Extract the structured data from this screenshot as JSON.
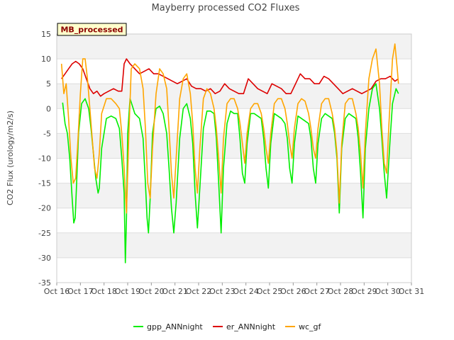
{
  "chart_data": {
    "type": "line",
    "title": "Mayberry processed CO2 Fluxes",
    "ylabel": "CO2 Flux (urology/m2/s)",
    "xlabel": "",
    "tag": "MB_processed",
    "ylim": [
      -35,
      15
    ],
    "yticks": [
      15,
      10,
      5,
      0,
      -5,
      -10,
      -15,
      -20,
      -25,
      -30,
      -35
    ],
    "xlim": [
      16,
      31
    ],
    "xticks": [
      16,
      17,
      18,
      19,
      20,
      21,
      22,
      23,
      24,
      25,
      26,
      27,
      28,
      29,
      30,
      31
    ],
    "xtick_labels": [
      "Oct 16",
      "Oct 17",
      "Oct 18",
      "Oct 19",
      "Oct 20",
      "Oct 21",
      "Oct 22",
      "Oct 23",
      "Oct 24",
      "Oct 25",
      "Oct 26",
      "Oct 27",
      "Oct 28",
      "Oct 29",
      "Oct 30",
      "Oct 31"
    ],
    "series": [
      {
        "name": "gpp_ANNnight",
        "color": "#00ee00",
        "x": [
          16.25,
          16.35,
          16.45,
          16.55,
          16.65,
          16.72,
          16.78,
          16.85,
          16.92,
          17.05,
          17.2,
          17.35,
          17.45,
          17.55,
          17.65,
          17.75,
          17.8,
          17.9,
          18.1,
          18.3,
          18.5,
          18.65,
          18.75,
          18.85,
          18.9,
          18.95,
          19.0,
          19.1,
          19.2,
          19.3,
          19.5,
          19.65,
          19.75,
          19.82,
          19.88,
          19.95,
          20.05,
          20.2,
          20.35,
          20.5,
          20.65,
          20.75,
          20.85,
          20.95,
          21.05,
          21.2,
          21.35,
          21.5,
          21.65,
          21.75,
          21.85,
          21.95,
          22.05,
          22.2,
          22.35,
          22.5,
          22.65,
          22.75,
          22.85,
          22.95,
          23.05,
          23.2,
          23.35,
          23.5,
          23.65,
          23.75,
          23.85,
          23.95,
          24.05,
          24.2,
          24.35,
          24.5,
          24.65,
          24.75,
          24.85,
          24.95,
          25.05,
          25.2,
          25.35,
          25.5,
          25.65,
          25.75,
          25.85,
          25.95,
          26.05,
          26.2,
          26.35,
          26.5,
          26.65,
          26.75,
          26.85,
          26.95,
          27.05,
          27.2,
          27.35,
          27.5,
          27.65,
          27.75,
          27.85,
          27.95,
          28.05,
          28.2,
          28.35,
          28.5,
          28.65,
          28.75,
          28.85,
          28.95,
          29.05,
          29.2,
          29.35,
          29.5,
          29.65,
          29.75,
          29.85,
          29.95,
          30.1,
          30.2,
          30.35,
          30.45
        ],
        "values": [
          1.2,
          -3,
          -5,
          -10,
          -18,
          -23,
          -22,
          -14,
          -5,
          1,
          2,
          0,
          -4,
          -9,
          -14,
          -17,
          -16,
          -8,
          -2,
          -1.5,
          -2,
          -4,
          -10,
          -17,
          -31,
          -22,
          -5,
          2,
          0.5,
          -1,
          -2,
          -6,
          -15,
          -22,
          -25,
          -18,
          -5,
          0,
          0.5,
          -1,
          -5,
          -12,
          -20,
          -25,
          -19,
          -6,
          0,
          1,
          -2,
          -7,
          -17,
          -24,
          -16,
          -4,
          -0.5,
          -0.5,
          -1,
          -6,
          -15,
          -25,
          -12,
          -3,
          -0.5,
          -1,
          -1,
          -6,
          -13,
          -15,
          -7,
          -1,
          -1,
          -1.5,
          -2,
          -6,
          -12,
          -16,
          -7,
          -1,
          -1.5,
          -2,
          -3,
          -6,
          -12,
          -15,
          -7,
          -1.5,
          -2,
          -2.5,
          -3,
          -6,
          -12,
          -15,
          -7,
          -2,
          -1,
          -1.5,
          -2,
          -5,
          -10,
          -21,
          -8,
          -2,
          -1,
          -1.5,
          -2,
          -6,
          -13,
          -22,
          -8,
          0,
          4,
          5,
          0,
          -6,
          -13,
          -18,
          -6,
          1,
          4,
          3
        ]
      },
      {
        "name": "er_ANNnight",
        "color": "#dd0000",
        "x": [
          16.2,
          16.35,
          16.5,
          16.65,
          16.8,
          16.95,
          17.1,
          17.25,
          17.4,
          17.55,
          17.7,
          17.85,
          18.0,
          18.2,
          18.4,
          18.6,
          18.75,
          18.85,
          18.95,
          19.1,
          19.3,
          19.5,
          19.7,
          19.9,
          20.1,
          20.3,
          20.5,
          20.7,
          20.9,
          21.1,
          21.3,
          21.5,
          21.7,
          21.9,
          22.1,
          22.3,
          22.5,
          22.7,
          22.9,
          23.1,
          23.3,
          23.5,
          23.7,
          23.9,
          24.1,
          24.3,
          24.5,
          24.7,
          24.9,
          25.1,
          25.3,
          25.5,
          25.7,
          25.9,
          26.1,
          26.3,
          26.5,
          26.7,
          26.9,
          27.1,
          27.3,
          27.5,
          27.7,
          27.9,
          28.1,
          28.3,
          28.5,
          28.7,
          28.9,
          29.1,
          29.3,
          29.5,
          29.7,
          29.9,
          30.1,
          30.3,
          30.45
        ],
        "values": [
          6,
          7,
          8,
          9,
          9.5,
          9,
          8,
          6,
          4,
          3,
          3.5,
          2.5,
          3,
          3.5,
          4,
          3.5,
          3.5,
          9,
          10,
          9,
          8,
          7,
          7.5,
          8,
          7,
          7,
          6.5,
          6,
          5.5,
          5,
          5.5,
          6,
          4.5,
          4,
          4,
          3.5,
          4,
          3,
          3.5,
          5,
          4,
          3.5,
          3,
          3,
          6,
          5,
          4,
          3.5,
          3,
          5,
          4.5,
          4,
          3,
          3,
          5,
          7,
          6,
          6,
          5,
          5,
          6.5,
          6,
          5,
          4,
          3,
          3.5,
          4,
          3.5,
          3,
          3.5,
          4,
          5.5,
          6,
          6,
          6.5,
          5.5,
          6
        ]
      },
      {
        "name": "wc_gf",
        "color": "#ffa500",
        "x": [
          16.2,
          16.3,
          16.4,
          16.5,
          16.6,
          16.7,
          16.8,
          16.9,
          17.0,
          17.1,
          17.2,
          17.3,
          17.4,
          17.5,
          17.6,
          17.7,
          17.8,
          17.9,
          18.1,
          18.3,
          18.5,
          18.65,
          18.75,
          18.85,
          18.95,
          19.05,
          19.15,
          19.3,
          19.5,
          19.65,
          19.75,
          19.85,
          19.95,
          20.05,
          20.2,
          20.35,
          20.5,
          20.65,
          20.75,
          20.85,
          20.95,
          21.05,
          21.2,
          21.35,
          21.5,
          21.65,
          21.75,
          21.85,
          21.95,
          22.05,
          22.2,
          22.35,
          22.5,
          22.65,
          22.75,
          22.85,
          22.95,
          23.05,
          23.2,
          23.35,
          23.5,
          23.65,
          23.75,
          23.85,
          23.95,
          24.05,
          24.2,
          24.35,
          24.5,
          24.65,
          24.75,
          24.85,
          24.95,
          25.05,
          25.2,
          25.35,
          25.5,
          25.65,
          25.75,
          25.85,
          25.95,
          26.05,
          26.2,
          26.35,
          26.5,
          26.65,
          26.75,
          26.85,
          26.95,
          27.05,
          27.2,
          27.35,
          27.5,
          27.65,
          27.75,
          27.85,
          27.95,
          28.05,
          28.2,
          28.35,
          28.5,
          28.65,
          28.75,
          28.85,
          28.95,
          29.05,
          29.2,
          29.35,
          29.5,
          29.65,
          29.75,
          29.85,
          29.95,
          30.05,
          30.2,
          30.3,
          30.4,
          30.45
        ],
        "values": [
          9,
          3,
          5,
          -2,
          -10,
          -15,
          -14,
          -6,
          3,
          10,
          10,
          6,
          0,
          -6,
          -12,
          -14,
          -9,
          -1,
          2,
          2,
          1,
          0,
          -5,
          -12,
          -21,
          -5,
          8,
          9,
          8,
          4,
          -4,
          -15,
          -18,
          -8,
          3,
          8,
          7,
          4,
          -4,
          -13,
          -18,
          -10,
          2,
          6,
          7,
          3,
          -3,
          -12,
          -17,
          -8,
          2,
          4,
          3,
          0,
          -4,
          -10,
          -17,
          -6,
          1,
          2,
          2,
          0,
          -3,
          -7,
          -11,
          -5,
          0,
          1,
          1,
          -1,
          -4,
          -8,
          -11,
          -5,
          1,
          2,
          2,
          0,
          -3,
          -7,
          -10,
          -4,
          1,
          2,
          1.5,
          -1,
          -4,
          -8,
          -10,
          -4,
          1,
          2,
          2,
          -1,
          -4,
          -9,
          -19,
          -7,
          1,
          2,
          2,
          -1,
          -4,
          -9,
          -16,
          -5,
          6,
          10,
          12,
          5,
          -4,
          -11,
          -13,
          -3,
          10,
          13,
          8,
          5
        ]
      }
    ]
  }
}
